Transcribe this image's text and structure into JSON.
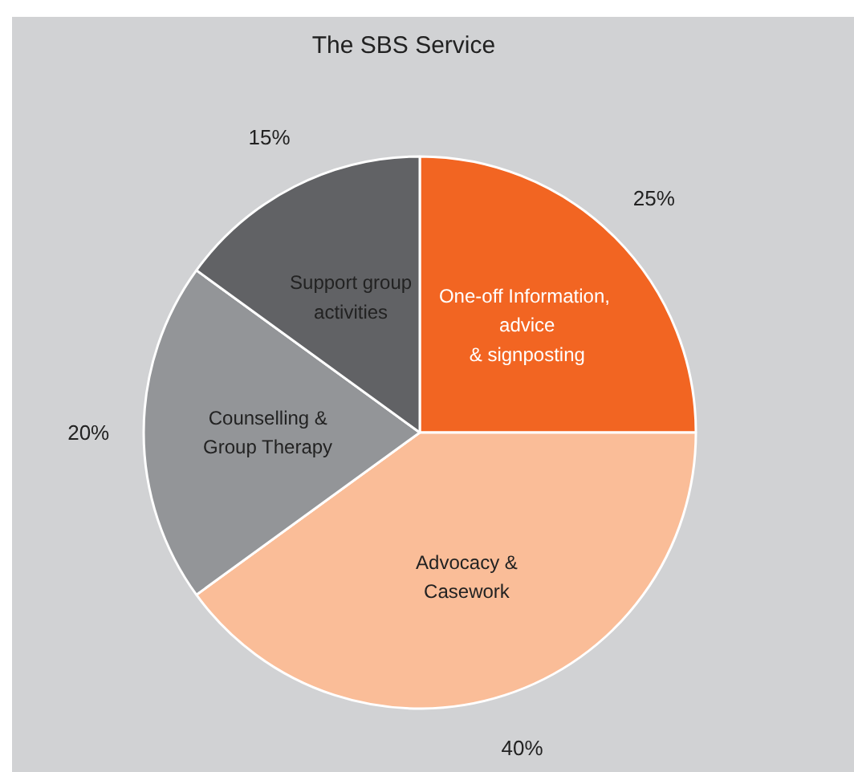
{
  "chart_data": {
    "type": "pie",
    "title": "The SBS Service",
    "categories": [
      "One-off  Information,\nadvice\n& signposting",
      "Advocacy &\nCasework",
      "Counselling &\nGroup Therapy",
      "Support group\nactivities"
    ],
    "values": [
      25,
      40,
      20,
      15
    ],
    "colors": [
      "#f26522",
      "#fabd98",
      "#939598",
      "#616265"
    ],
    "value_labels": [
      "25%",
      "40%",
      "20%",
      "15%"
    ]
  }
}
